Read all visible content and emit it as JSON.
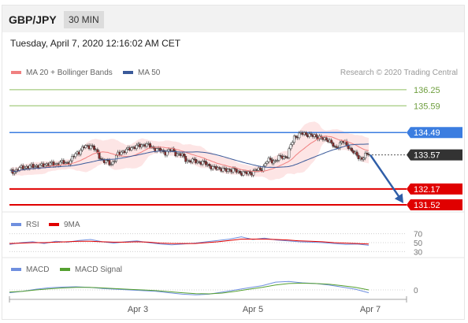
{
  "header": {
    "pair": "GBP/JPY",
    "timeframe": "30 MIN",
    "datetime": "Tuesday, April 7, 2020 12:16:02 AM CET"
  },
  "colors": {
    "up_candle": "#ffffff",
    "down_candle": "#8b2b2b",
    "ma20": "#f08080",
    "bollinger_fill": "#fde0e0",
    "ma50": "#3a5a9a",
    "resistance_green": "#8fbf60",
    "resistance_blue": "#3b7de0",
    "support_red": "#e00000",
    "current_price": "#333333",
    "rsi": "#6f8fdf",
    "rsi_ma": "#e00000",
    "macd": "#6f8fdf",
    "macd_signal": "#55a030",
    "arrow": "#2f5ea8"
  },
  "chart_data": [
    {
      "type": "candlestick",
      "legend": [
        {
          "name": "MA 20 + Bollinger Bands",
          "color": "#f08080"
        },
        {
          "name": "MA 50",
          "color": "#3a5a9a"
        }
      ],
      "source": "Research © 2020 Trading Central",
      "ylim": [
        131.0,
        136.7
      ],
      "x_ticks": [
        "Apr 3",
        "Apr 5",
        "Apr 7"
      ],
      "levels": [
        {
          "label": "136.25",
          "value": 136.25,
          "kind": "resistance",
          "color": "#8fbf60"
        },
        {
          "label": "135.59",
          "value": 135.59,
          "kind": "resistance",
          "color": "#8fbf60"
        },
        {
          "label": "134.49",
          "value": 134.49,
          "kind": "resistance",
          "color": "#3b7de0"
        },
        {
          "label": "133.57",
          "value": 133.57,
          "kind": "current",
          "color": "#333333"
        },
        {
          "label": "132.17",
          "value": 132.17,
          "kind": "support",
          "color": "#e00000"
        },
        {
          "label": "131.52",
          "value": 131.52,
          "kind": "support",
          "color": "#e00000"
        }
      ],
      "price_path": [
        132.85,
        132.95,
        133.05,
        133.1,
        133.1,
        133.15,
        133.2,
        133.2,
        133.25,
        133.3,
        133.7,
        133.85,
        134.0,
        133.6,
        133.3,
        133.2,
        133.6,
        133.75,
        133.85,
        133.95,
        134.0,
        133.9,
        133.75,
        133.7,
        133.75,
        133.6,
        133.4,
        133.3,
        133.3,
        133.2,
        133.05,
        133.0,
        132.95,
        132.95,
        132.85,
        132.8,
        132.9,
        132.95,
        133.3,
        133.35,
        133.45,
        133.55,
        134.3,
        134.45,
        134.4,
        134.35,
        134.25,
        134.2,
        133.85,
        134.1,
        133.95,
        133.55,
        133.45,
        133.57
      ],
      "forecast": {
        "from": 133.57,
        "to": 131.52
      }
    },
    {
      "type": "line",
      "legend": [
        {
          "name": "RSI",
          "color": "#6f8fdf"
        },
        {
          "name": "9MA",
          "color": "#e00000"
        }
      ],
      "y_ticks": [
        "70",
        "50",
        "30"
      ],
      "ylim": [
        20,
        80
      ],
      "series": [
        {
          "name": "RSI",
          "values": [
            46,
            50,
            52,
            48,
            53,
            51,
            55,
            57,
            52,
            49,
            52,
            54,
            50,
            47,
            45,
            47,
            49,
            52,
            55,
            58,
            63,
            57,
            60,
            56,
            54,
            52,
            51,
            50,
            48,
            46,
            47,
            44
          ]
        },
        {
          "name": "9MA",
          "values": [
            48,
            49,
            50,
            50,
            51,
            52,
            53,
            53,
            52,
            51,
            51,
            52,
            51,
            49,
            48,
            48,
            48,
            50,
            52,
            55,
            58,
            58,
            58,
            57,
            56,
            54,
            53,
            52,
            50,
            49,
            48,
            47
          ]
        }
      ]
    },
    {
      "type": "line",
      "legend": [
        {
          "name": "MACD",
          "color": "#6f8fdf"
        },
        {
          "name": "MACD Signal",
          "color": "#55a030"
        }
      ],
      "y_ticks": [
        "0"
      ],
      "ylim": [
        -1,
        1
      ],
      "series": [
        {
          "name": "MACD",
          "values": [
            -0.2,
            -0.1,
            0.05,
            0.15,
            0.2,
            0.22,
            0.18,
            0.1,
            0.05,
            0.0,
            -0.05,
            -0.1,
            -0.2,
            -0.3,
            -0.35,
            -0.3,
            -0.15,
            0.0,
            0.15,
            0.3,
            0.55,
            0.6,
            0.5,
            0.45,
            0.35,
            0.2,
            0.05,
            -0.2
          ]
        },
        {
          "name": "MACD Signal",
          "values": [
            -0.15,
            -0.1,
            0.0,
            0.08,
            0.14,
            0.18,
            0.18,
            0.14,
            0.09,
            0.04,
            0.0,
            -0.05,
            -0.12,
            -0.2,
            -0.26,
            -0.28,
            -0.22,
            -0.1,
            0.05,
            0.18,
            0.35,
            0.45,
            0.47,
            0.45,
            0.4,
            0.3,
            0.18,
            0.0
          ]
        }
      ]
    }
  ]
}
